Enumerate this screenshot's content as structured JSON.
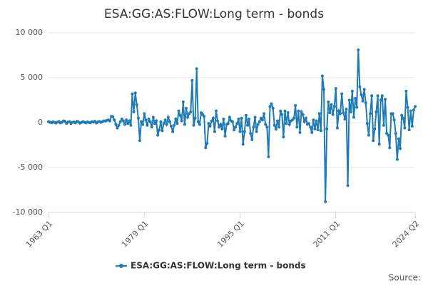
{
  "chart_data": {
    "type": "line",
    "title": "ESA:GG:AS:FLOW:Long term - bonds",
    "source": "Source:",
    "categories": [
      "1963 Q1",
      null,
      null,
      null,
      null,
      null,
      null,
      null,
      null,
      null,
      null,
      null,
      null,
      null,
      null,
      null,
      null,
      null,
      null,
      null,
      null,
      null,
      null,
      null,
      null,
      null,
      null,
      null,
      null,
      null,
      null,
      null,
      null,
      null,
      null,
      null,
      null,
      null,
      null,
      null,
      null,
      null,
      null,
      null,
      null,
      null,
      null,
      null,
      null,
      null,
      null,
      null,
      null,
      null,
      null,
      null,
      null,
      null,
      null,
      null,
      null,
      null,
      null,
      null,
      "1979 Q1",
      null,
      null,
      null,
      null,
      null,
      null,
      null,
      null,
      null,
      null,
      null,
      null,
      null,
      null,
      null,
      null,
      null,
      null,
      null,
      null,
      null,
      null,
      null,
      null,
      null,
      null,
      null,
      null,
      null,
      null,
      null,
      null,
      null,
      null,
      null,
      null,
      null,
      null,
      null,
      null,
      null,
      null,
      null,
      null,
      null,
      null,
      null,
      null,
      null,
      null,
      null,
      null,
      null,
      null,
      null,
      null,
      null,
      null,
      null,
      null,
      null,
      null,
      null,
      "1995 Q1",
      null,
      null,
      null,
      null,
      null,
      null,
      null,
      null,
      null,
      null,
      null,
      null,
      null,
      null,
      null,
      null,
      null,
      null,
      null,
      null,
      null,
      null,
      null,
      null,
      null,
      null,
      null,
      null,
      null,
      null,
      null,
      null,
      null,
      null,
      null,
      null,
      null,
      null,
      null,
      null,
      null,
      null,
      null,
      null,
      null,
      null,
      null,
      null,
      null,
      null,
      null,
      null,
      null,
      null,
      null,
      null,
      null,
      null,
      null,
      null,
      null,
      null,
      null,
      "2011 Q1",
      null,
      null,
      null,
      null,
      null,
      null,
      null,
      null,
      null,
      null,
      null,
      null,
      null,
      null,
      null,
      null,
      null,
      null,
      null,
      null,
      null,
      null,
      null,
      null,
      null,
      null,
      null,
      null,
      null,
      null,
      null,
      null,
      null,
      null,
      null,
      null,
      null,
      null,
      null,
      null,
      null,
      null,
      null,
      null,
      null,
      null,
      null,
      null,
      null,
      null,
      null,
      null,
      "2024 Q2"
    ],
    "series": [
      {
        "name": "ESA:GG:AS:FLOW:Long term - bonds",
        "color": "#1f7ab6",
        "values": [
          100,
          50,
          -20,
          80,
          30,
          -50,
          60,
          120,
          -30,
          40,
          200,
          150,
          -80,
          50,
          100,
          -100,
          30,
          60,
          -40,
          150,
          80,
          -60,
          20,
          100,
          50,
          -30,
          70,
          20,
          -20,
          100,
          60,
          150,
          -50,
          80,
          120,
          40,
          100,
          200,
          180,
          250,
          300,
          200,
          700,
          650,
          300,
          -200,
          -600,
          -300,
          100,
          400,
          200,
          -200,
          300,
          -100,
          200,
          -300,
          3200,
          1200,
          3300,
          2000,
          500,
          -2000,
          100,
          -200,
          1000,
          300,
          -300,
          400,
          100,
          -500,
          600,
          -100,
          200,
          -1400,
          -800,
          100,
          -900,
          -100,
          300,
          -200,
          600,
          100,
          -400,
          -1000,
          -300,
          400,
          -100,
          1300,
          800,
          200,
          2300,
          -200,
          1600,
          600,
          1000,
          1200,
          4700,
          -300,
          500,
          6000,
          100,
          -200,
          1100,
          900,
          700,
          -2800,
          -2300,
          -100,
          -400,
          200,
          500,
          -1000,
          1300,
          200,
          -500,
          -200,
          -700,
          400,
          -1500,
          -200,
          -100,
          600,
          200,
          100,
          -800,
          -500,
          -100,
          400,
          -1000,
          500,
          -2400,
          -1000,
          800,
          -300,
          400,
          -1200,
          -1900,
          -500,
          600,
          -1000,
          -200,
          100,
          500,
          300,
          1000,
          -200,
          -500,
          -3800,
          1800,
          2100,
          1600,
          -300,
          -700,
          200,
          -500,
          1300,
          900,
          -1600,
          1300,
          -100,
          1100,
          -200,
          200,
          300,
          500,
          1900,
          -500,
          1300,
          -1100,
          1200,
          900,
          100,
          500,
          -200,
          -100,
          -500,
          -1100,
          300,
          -700,
          200,
          -800,
          1000,
          -900,
          5200,
          3700,
          -8800,
          -700,
          2300,
          1100,
          2000,
          900,
          1800,
          3800,
          -600,
          1300,
          1000,
          3200,
          1100,
          400,
          1500,
          -7000,
          2500,
          1200,
          3500,
          600,
          2700,
          1700,
          8100,
          4000,
          3100,
          2400,
          3700,
          2200,
          -100,
          -1400,
          1000,
          3000,
          -2000,
          -700,
          1200,
          3000,
          -2400,
          2500,
          3000,
          -300,
          2600,
          -1200,
          -1400,
          -2800,
          1000,
          1000,
          300,
          -1200,
          -4100,
          -1800,
          -2900,
          800,
          500,
          -600,
          3500,
          1700,
          -800,
          1300,
          -400,
          1400,
          1800
        ]
      }
    ],
    "ylim": [
      -10000,
      10000
    ],
    "yticks": [
      {
        "value": -10000,
        "label": "-10 000"
      },
      {
        "value": -5000,
        "label": "-5 000"
      },
      0,
      {
        "value": 5000,
        "label": "5 000"
      },
      {
        "value": 10000,
        "label": "10 000"
      }
    ],
    "grid": true
  }
}
